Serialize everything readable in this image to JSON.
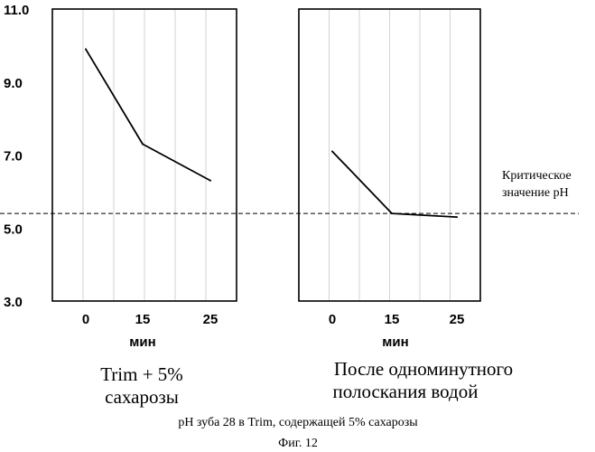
{
  "chart_data": [
    {
      "type": "line",
      "title": "Trim + 5% сахарозы",
      "title_lines": [
        "Trim + 5%",
        "сахарозы"
      ],
      "xlabel": "мин",
      "x_tick_labels": [
        "0",
        "15",
        "25"
      ],
      "ylim": [
        3.0,
        11.0
      ],
      "y_tick_labels": [
        "11.0",
        "9.0",
        "7.0",
        "5.0",
        "3.0"
      ],
      "series": [
        {
          "x": [
            0,
            15,
            25
          ],
          "values": [
            9.9,
            7.3,
            6.3
          ]
        }
      ]
    },
    {
      "type": "line",
      "title": "После одноминутного полоскания водой",
      "title_lines": [
        "После одноминутного",
        "полоскания водой"
      ],
      "xlabel": "мин",
      "x_tick_labels": [
        "0",
        "15",
        "25"
      ],
      "ylim": [
        3.0,
        11.0
      ],
      "series": [
        {
          "x": [
            0,
            15,
            25
          ],
          "values": [
            7.1,
            5.4,
            5.3
          ]
        }
      ]
    }
  ],
  "critical_ph": 5.4,
  "critical_label_lines": [
    "Критическое",
    "значение pH"
  ],
  "caption": "pH зуба 28 в Trim, содержащей 5% сахарозы",
  "figure_label": "Фиг. 12"
}
